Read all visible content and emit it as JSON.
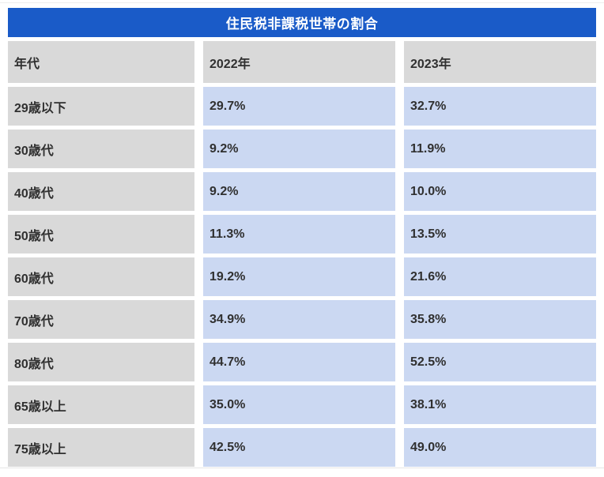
{
  "page": {
    "title": "住民税非課税世帯の割合"
  },
  "table": {
    "columns": [
      "年代",
      "2022年",
      "2023年"
    ],
    "rows": [
      {
        "label": "29歳以下",
        "y2022": "29.7%",
        "y2023": "32.7%"
      },
      {
        "label": "30歳代",
        "y2022": "9.2%",
        "y2023": "11.9%"
      },
      {
        "label": "40歳代",
        "y2022": "9.2%",
        "y2023": "10.0%"
      },
      {
        "label": "50歳代",
        "y2022": "11.3%",
        "y2023": "13.5%"
      },
      {
        "label": "60歳代",
        "y2022": "19.2%",
        "y2023": "21.6%"
      },
      {
        "label": "70歳代",
        "y2022": "34.9%",
        "y2023": "35.8%"
      },
      {
        "label": "80歳代",
        "y2022": "44.7%",
        "y2023": "52.5%"
      },
      {
        "label": "65歳以上",
        "y2022": "35.0%",
        "y2023": "38.1%"
      },
      {
        "label": "75歳以上",
        "y2022": "42.5%",
        "y2023": "49.0%"
      }
    ]
  },
  "chart_data": {
    "type": "table",
    "title": "住民税非課税世帯の割合",
    "row_header_label": "年代",
    "categories": [
      "29歳以下",
      "30歳代",
      "40歳代",
      "50歳代",
      "60歳代",
      "70歳代",
      "80歳代",
      "65歳以上",
      "75歳以上"
    ],
    "series": [
      {
        "name": "2022年",
        "values": [
          29.7,
          9.2,
          9.2,
          11.3,
          19.2,
          34.9,
          44.7,
          35.0,
          42.5
        ]
      },
      {
        "name": "2023年",
        "values": [
          32.7,
          11.9,
          10.0,
          13.5,
          21.6,
          35.8,
          52.5,
          38.1,
          49.0
        ]
      }
    ],
    "unit": "%"
  },
  "colors": {
    "title_bg": "#1a5bc8",
    "title_text": "#ffffff",
    "header_bg": "#d9d9d9",
    "label_bg": "#d9d9d9",
    "value_bg": "#cbd8f2",
    "cell_text": "#303030"
  }
}
